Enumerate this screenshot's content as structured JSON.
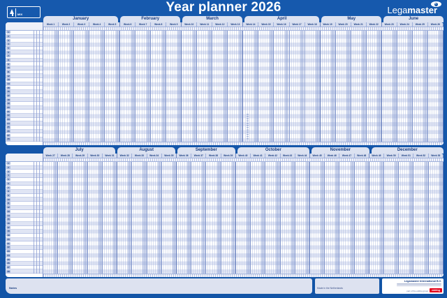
{
  "title": "Year planner 2026",
  "brand": {
    "name_light": "Lega",
    "name_bold": "master"
  },
  "fsc": {
    "label": "MIX"
  },
  "notes_label": "Notes",
  "footer": {
    "made_in": "Made in the Netherlands",
    "company": "Legamaster International B.V.",
    "edding": "edding",
    "tagline": "part of the edding group"
  },
  "row_numbers": [
    "1",
    "2",
    "3",
    "4",
    "5",
    "6",
    "7",
    "8",
    "9",
    "10",
    "11",
    "12",
    "13",
    "14",
    "15",
    "16",
    "17",
    "18",
    "19",
    "20",
    "21",
    "22",
    "23",
    "24",
    "25",
    "26",
    "27",
    "28"
  ],
  "halves": [
    {
      "months": [
        {
          "name": "January",
          "weeks": [
            "Week 1",
            "Week 2",
            "Week 3",
            "Week 4",
            "Week 5"
          ]
        },
        {
          "name": "February",
          "weeks": [
            "Week 6",
            "Week 7",
            "Week 8",
            "Week 9"
          ]
        },
        {
          "name": "March",
          "weeks": [
            "Week 10",
            "Week 11",
            "Week 12",
            "Week 13"
          ]
        },
        {
          "name": "April",
          "weeks": [
            "Week 14",
            "Week 15",
            "Week 16",
            "Week 17",
            "Week 18"
          ]
        },
        {
          "name": "May",
          "weeks": [
            "Week 19",
            "Week 20",
            "Week 21",
            "Week 22"
          ]
        },
        {
          "name": "June",
          "weeks": [
            "Week 23",
            "Week 24",
            "Week 25",
            "Week 26"
          ]
        }
      ]
    },
    {
      "months": [
        {
          "name": "July",
          "weeks": [
            "Week 27",
            "Week 28",
            "Week 29",
            "Week 30",
            "Week 31"
          ]
        },
        {
          "name": "August",
          "weeks": [
            "Week 32",
            "Week 33",
            "Week 34",
            "Week 35"
          ]
        },
        {
          "name": "September",
          "weeks": [
            "Week 36",
            "Week 37",
            "Week 38",
            "Week 39"
          ]
        },
        {
          "name": "October",
          "weeks": [
            "Week 40",
            "Week 41",
            "Week 42",
            "Week 43",
            "Week 44"
          ]
        },
        {
          "name": "November",
          "weeks": [
            "Week 45",
            "Week 46",
            "Week 47",
            "Week 48"
          ]
        },
        {
          "name": "December",
          "weeks": [
            "Week 49",
            "Week 50",
            "Week 51",
            "Week 52",
            "Week 53"
          ]
        }
      ]
    }
  ]
}
